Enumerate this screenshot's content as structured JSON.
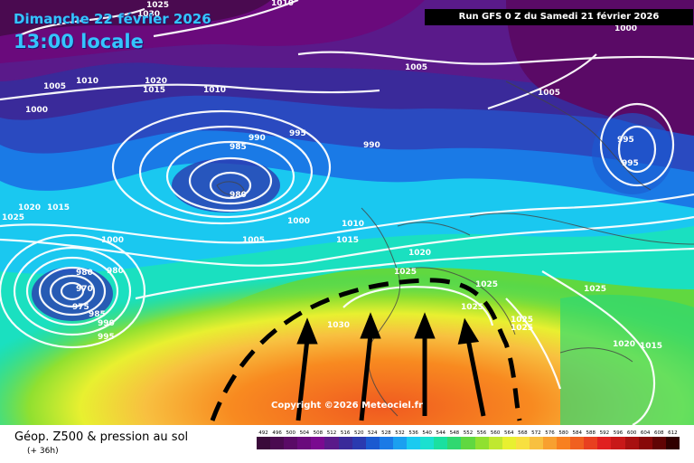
{
  "header": {
    "date": "Dimanche 22 février 2026",
    "local_time": "13:00 locale",
    "run": "Run GFS 0 Z du Samedi 21 février 2026"
  },
  "credit": "Copyright ©2026 Meteociel.fr",
  "footer": {
    "title": "Géop. Z500 & pression au sol",
    "offset": "(+ 36h)"
  },
  "scale": {
    "labels": [
      "492",
      "496",
      "500",
      "504",
      "508",
      "512",
      "516",
      "520",
      "524",
      "528",
      "532",
      "536",
      "540",
      "544",
      "548",
      "552",
      "556",
      "560",
      "564",
      "568",
      "572",
      "576",
      "580",
      "584",
      "588",
      "592",
      "596",
      "600",
      "604",
      "608",
      "612"
    ],
    "colors": [
      "#3a0a3a",
      "#4a0a50",
      "#5a0a66",
      "#6a0a7c",
      "#7a0a90",
      "#5a1a8a",
      "#3a2a9a",
      "#2a3ab0",
      "#1a5ad0",
      "#1a7ae6",
      "#1aa0f0",
      "#1acaf0",
      "#1ae0d0",
      "#1ae0a0",
      "#30d870",
      "#60d840",
      "#90e030",
      "#c0e830",
      "#e8f030",
      "#f8e040",
      "#f8c040",
      "#f8a030",
      "#f88020",
      "#f06020",
      "#e84020",
      "#e02020",
      "#c81818",
      "#a81010",
      "#880808",
      "#600404",
      "#300000"
    ]
  },
  "isobar_labels": [
    {
      "text": "1010",
      "pos": "top-left"
    },
    {
      "text": "1005",
      "pos": "top-left"
    },
    {
      "text": "1000",
      "pos": "top-left"
    },
    {
      "text": "1025",
      "pos": "top-left"
    },
    {
      "text": "1030",
      "pos": "top-left"
    },
    {
      "text": "1020",
      "pos": "top-left"
    },
    {
      "text": "1015",
      "pos": "top-left"
    },
    {
      "text": "1010",
      "pos": "top-center"
    },
    {
      "text": "1010",
      "pos": "top-center"
    },
    {
      "text": "1005",
      "pos": "top-center"
    },
    {
      "text": "1005",
      "pos": "top-right"
    },
    {
      "text": "1000",
      "pos": "top-right"
    },
    {
      "text": "990",
      "pos": "center"
    },
    {
      "text": "995",
      "pos": "center"
    },
    {
      "text": "990",
      "pos": "center"
    },
    {
      "text": "985",
      "pos": "center"
    },
    {
      "text": "980",
      "pos": "center"
    },
    {
      "text": "995",
      "pos": "right"
    },
    {
      "text": "995",
      "pos": "right"
    },
    {
      "text": "1020",
      "pos": "left"
    },
    {
      "text": "1015",
      "pos": "left"
    },
    {
      "text": "1025",
      "pos": "left"
    },
    {
      "text": "1000",
      "pos": "left"
    },
    {
      "text": "980",
      "pos": "left"
    },
    {
      "text": "980",
      "pos": "left"
    },
    {
      "text": "970",
      "pos": "left"
    },
    {
      "text": "975",
      "pos": "left"
    },
    {
      "text": "985",
      "pos": "left"
    },
    {
      "text": "990",
      "pos": "left"
    },
    {
      "text": "995",
      "pos": "left"
    },
    {
      "text": "1000",
      "pos": "center"
    },
    {
      "text": "1005",
      "pos": "center"
    },
    {
      "text": "1010",
      "pos": "center"
    },
    {
      "text": "1015",
      "pos": "center"
    },
    {
      "text": "1020",
      "pos": "center"
    },
    {
      "text": "1025",
      "pos": "center"
    },
    {
      "text": "1030",
      "pos": "center"
    },
    {
      "text": "1025",
      "pos": "right"
    },
    {
      "text": "1025",
      "pos": "right"
    },
    {
      "text": "1025",
      "pos": "right"
    },
    {
      "text": "1025",
      "pos": "right"
    },
    {
      "text": "1025",
      "pos": "right"
    },
    {
      "text": "1020",
      "pos": "right"
    },
    {
      "text": "1015",
      "pos": "right"
    }
  ]
}
